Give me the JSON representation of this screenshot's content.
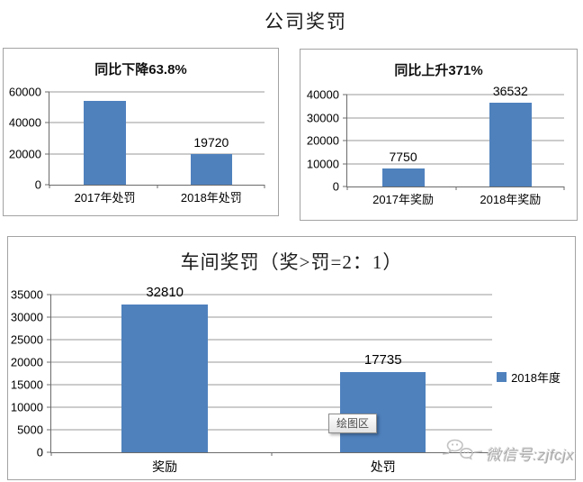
{
  "page": {
    "title": "公司奖罚"
  },
  "colors": {
    "bar": "#4f81bd",
    "gridline": "#9a9a9a",
    "axis": "#6b6b6b",
    "box_border": "#a3a3a3",
    "watermark_gray": "#ababab"
  },
  "chart_data": [
    {
      "type": "bar",
      "title": "同比下降63.8%",
      "categories": [
        "2017年处罚",
        "2018年处罚"
      ],
      "values": [
        54475,
        19720
      ],
      "value_labels": [
        "",
        "19720"
      ],
      "ylim": [
        0,
        60000
      ],
      "yticks": [
        0,
        20000,
        40000,
        60000
      ],
      "grid": true,
      "legend": null,
      "note": "2017 bar unlabeled; height ~54475 implied by 63.8% year-over-year decrease to 19720"
    },
    {
      "type": "bar",
      "title": "同比上升371%",
      "categories": [
        "2017年奖励",
        "2018年奖励"
      ],
      "values": [
        7750,
        36532
      ],
      "value_labels": [
        "7750",
        "36532"
      ],
      "ylim": [
        0,
        40000
      ],
      "yticks": [
        0,
        10000,
        20000,
        30000,
        40000
      ],
      "grid": true,
      "legend": null
    },
    {
      "type": "bar",
      "title": "车间奖罚（奖>罚=2：1）",
      "categories": [
        "奖励",
        "处罚"
      ],
      "values": [
        32810,
        17735
      ],
      "value_labels": [
        "32810",
        "17735"
      ],
      "ylim": [
        0,
        35000
      ],
      "yticks": [
        0,
        5000,
        10000,
        15000,
        20000,
        25000,
        30000,
        35000
      ],
      "grid": true,
      "legend": {
        "entries": [
          "2018年度"
        ],
        "position": "right"
      }
    }
  ],
  "tooltip": {
    "text": "绘图区"
  },
  "watermark": {
    "icon": "wechat-icon",
    "text": "微信号:zjfcjx"
  }
}
